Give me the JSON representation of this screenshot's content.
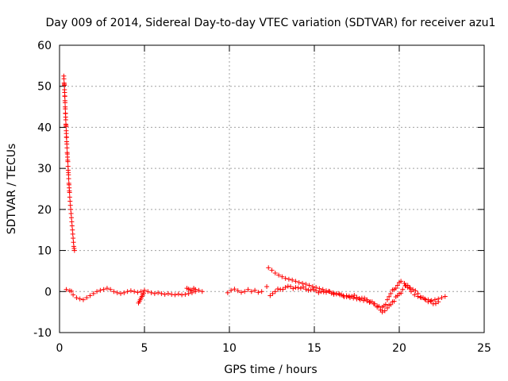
{
  "chart_data": {
    "type": "scatter",
    "title": "Day 009 of 2014, Sidereal Day-to-day VTEC variation (SDTVAR) for receiver azu1",
    "xlabel": "GPS time / hours",
    "ylabel": "SDTVAR / TECUs",
    "xlim": [
      0,
      25
    ],
    "ylim": [
      -10,
      60
    ],
    "xticks": [
      0,
      5,
      10,
      15,
      20,
      25
    ],
    "yticks": [
      -10,
      0,
      10,
      20,
      30,
      40,
      50,
      60
    ],
    "grid": true,
    "marker": "+",
    "color": "#ff0000",
    "series": [
      {
        "name": "SDTVAR",
        "segments": [
          {
            "x": [
              0.25,
              0.28,
              0.3,
              0.32,
              0.34,
              0.36,
              0.38,
              0.4,
              0.42,
              0.44,
              0.46,
              0.48,
              0.5,
              0.52,
              0.54,
              0.56,
              0.58,
              0.6,
              0.62,
              0.64,
              0.66,
              0.68,
              0.7,
              0.72,
              0.74,
              0.76,
              0.78,
              0.8,
              0.82,
              0.84,
              0.86,
              0.88
            ],
            "y": [
              52.5,
              50.5,
              48.5,
              46.5,
              44.5,
              42.5,
              40.5,
              38.5,
              36.5,
              35,
              33.5,
              32,
              30.5,
              29,
              27.5,
              26,
              24.5,
              23,
              22,
              21,
              20,
              19,
              18,
              17,
              16,
              15,
              14,
              13,
              12,
              11,
              10.5,
              10
            ]
          },
          {
            "x": [
              0.4,
              0.6,
              0.8,
              1.0,
              1.2,
              1.4,
              1.6,
              1.8,
              2.0,
              2.2,
              2.4,
              2.6,
              2.8,
              3.0,
              3.2,
              3.4,
              3.6,
              3.8,
              4.0,
              4.2,
              4.4,
              4.6,
              4.8,
              5.0,
              5.2,
              5.4,
              5.6,
              5.8,
              6.0,
              6.2,
              6.4,
              6.6,
              6.8,
              7.0,
              7.2,
              7.4,
              7.6,
              7.8,
              8.0,
              8.2,
              8.4
            ],
            "y": [
              0.5,
              0.2,
              -0.8,
              -1.5,
              -1.8,
              -2.0,
              -1.5,
              -1.0,
              -0.5,
              0.0,
              0.3,
              0.5,
              0.8,
              0.5,
              0.0,
              -0.3,
              -0.5,
              -0.3,
              0.0,
              0.2,
              0.0,
              -0.2,
              0.0,
              0.3,
              0.0,
              -0.3,
              -0.5,
              -0.3,
              -0.5,
              -0.7,
              -0.5,
              -0.7,
              -0.8,
              -0.6,
              -0.8,
              -0.7,
              -0.5,
              -0.3,
              0.0,
              0.3,
              0.0
            ]
          },
          {
            "x": [
              4.65,
              4.7,
              4.75,
              4.8,
              4.85,
              4.9,
              4.95
            ],
            "y": [
              -2.8,
              -2.4,
              -2.0,
              -1.6,
              -1.2,
              -0.8,
              -0.4
            ]
          },
          {
            "x": [
              7.5,
              7.6,
              7.7,
              7.8,
              7.9,
              8.0
            ],
            "y": [
              0.8,
              0.6,
              0.4,
              0.2,
              0.8,
              0.5
            ]
          },
          {
            "x": [
              9.9,
              10.1,
              10.3,
              10.5,
              10.7,
              10.9,
              11.1,
              11.3,
              11.5,
              11.7,
              11.9
            ],
            "y": [
              -0.3,
              0.3,
              0.6,
              0.2,
              -0.2,
              0.0,
              0.5,
              0.0,
              0.3,
              -0.2,
              0.0
            ]
          },
          {
            "x": [
              12.3,
              12.5,
              12.7,
              12.9,
              13.1,
              13.3,
              13.5,
              13.7,
              13.9,
              14.1,
              14.3,
              14.5,
              14.7,
              14.9,
              15.1,
              15.3,
              15.5,
              15.7,
              15.9,
              16.1,
              16.3,
              16.5,
              16.7,
              16.9,
              17.1,
              17.3,
              17.5,
              17.7,
              17.9,
              18.1,
              18.3,
              18.5,
              18.7,
              18.9,
              19.1,
              19.3,
              19.5,
              19.7,
              19.9,
              20.1,
              20.3,
              20.5,
              20.7,
              20.9,
              21.1,
              21.3,
              21.5,
              21.7,
              21.9,
              22.1,
              22.3,
              22.5,
              22.7
            ],
            "y": [
              5.8,
              5.2,
              4.5,
              4.0,
              3.6,
              3.2,
              3.0,
              2.8,
              2.5,
              2.2,
              2.0,
              1.8,
              1.5,
              1.2,
              1.0,
              0.7,
              0.5,
              0.2,
              0.0,
              -0.3,
              -0.5,
              -0.8,
              -1.0,
              -1.3,
              -1.5,
              -1.6,
              -1.8,
              -2.0,
              -2.2,
              -2.3,
              -2.5,
              -3.0,
              -3.8,
              -4.5,
              -3.5,
              -2.0,
              -0.5,
              0.5,
              1.5,
              2.5,
              2.0,
              1.0,
              0.0,
              -0.8,
              -1.2,
              -1.5,
              -1.8,
              -2.0,
              -2.2,
              -2.0,
              -1.8,
              -1.5,
              -1.2
            ]
          },
          {
            "x": [
              12.4,
              12.7,
              13.0,
              13.3,
              13.6,
              13.9,
              14.2,
              14.5,
              14.8,
              15.1,
              15.4,
              15.7,
              16.0,
              16.3,
              16.6,
              16.9,
              17.2,
              17.5,
              17.8,
              18.1,
              18.4,
              18.7,
              19.0,
              19.3,
              19.6,
              19.9,
              20.2,
              20.5,
              20.8,
              21.1,
              21.4,
              21.7,
              22.0,
              22.3
            ],
            "y": [
              -1.0,
              0.0,
              0.5,
              1.0,
              1.2,
              1.0,
              0.8,
              0.6,
              0.4,
              0.2,
              0.0,
              -0.2,
              -0.4,
              -0.6,
              -0.8,
              -1.0,
              -1.2,
              -1.4,
              -1.6,
              -2.0,
              -2.5,
              -3.5,
              -5.0,
              -4.0,
              -2.5,
              -1.0,
              0.5,
              1.5,
              0.5,
              -0.5,
              -1.5,
              -2.5,
              -3.0,
              -2.5
            ]
          },
          {
            "x": [
              12.2
            ],
            "y": [
              1.2
            ]
          }
        ]
      }
    ]
  }
}
